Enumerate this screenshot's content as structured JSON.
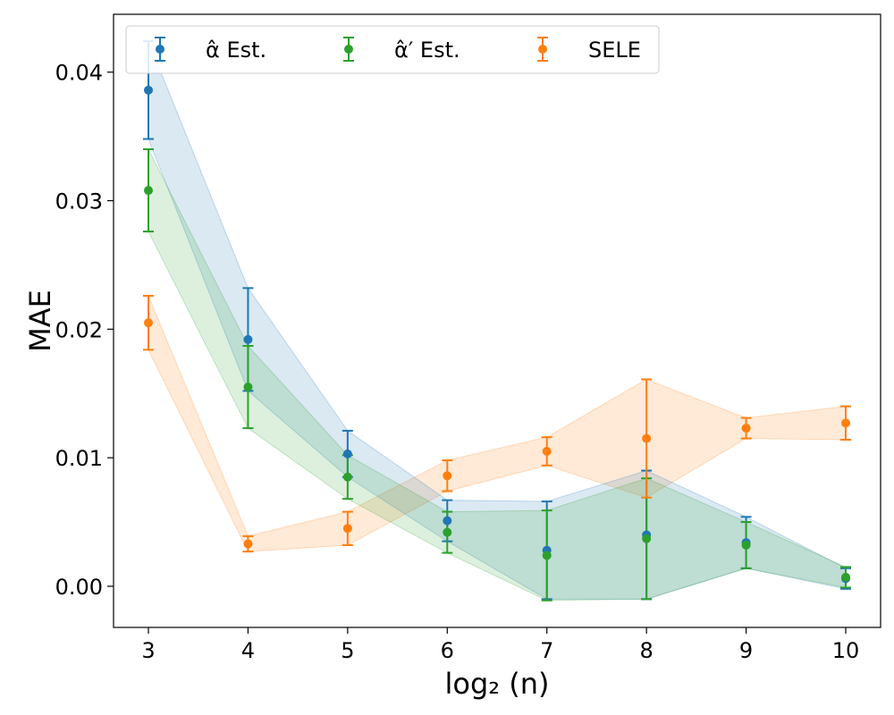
{
  "chart_data": {
    "type": "scatter",
    "title": "",
    "xlabel": "log₂ (n)",
    "ylabel": "MAE",
    "x": [
      3,
      4,
      5,
      6,
      7,
      8,
      9,
      10
    ],
    "xlim": [
      2.65,
      10.35
    ],
    "ylim": [
      -0.0032,
      0.0445
    ],
    "xticks": [
      3,
      4,
      5,
      6,
      7,
      8,
      9,
      10
    ],
    "yticks": [
      0.0,
      0.01,
      0.02,
      0.03,
      0.04
    ],
    "ytick_labels": [
      "0.00",
      "0.01",
      "0.02",
      "0.03",
      "0.04"
    ],
    "grid": false,
    "legend_position": "top",
    "series": [
      {
        "name": "α̂ Est.",
        "color": "#1f77b4",
        "values": [
          0.0386,
          0.0192,
          0.0103,
          0.0051,
          0.0028,
          0.004,
          0.0034,
          0.0006
        ],
        "err": [
          0.0038,
          0.004,
          0.0018,
          0.0016,
          0.0038,
          0.005,
          0.002,
          0.0008
        ]
      },
      {
        "name": "α̂′ Est.",
        "color": "#2ca02c",
        "values": [
          0.0308,
          0.0155,
          0.0085,
          0.0042,
          0.0024,
          0.0037,
          0.0032,
          0.0007
        ],
        "err": [
          0.0032,
          0.0032,
          0.0017,
          0.0016,
          0.0035,
          0.0047,
          0.0018,
          0.0008
        ]
      },
      {
        "name": "SELE",
        "color": "#ff7f0e",
        "values": [
          0.0205,
          0.0033,
          0.0045,
          0.0086,
          0.0105,
          0.0115,
          0.0123,
          0.0127
        ],
        "err": [
          0.0021,
          0.0006,
          0.0013,
          0.0012,
          0.0011,
          0.0046,
          0.0008,
          0.0013
        ]
      }
    ]
  }
}
